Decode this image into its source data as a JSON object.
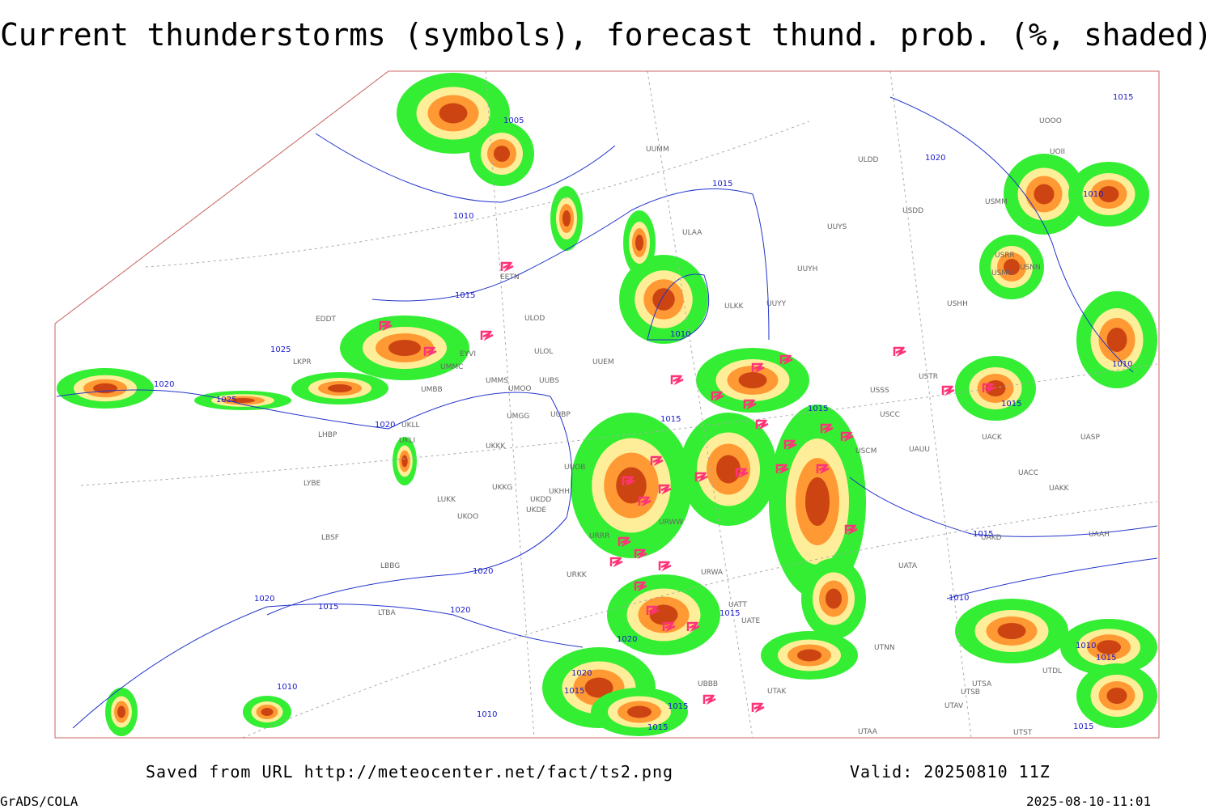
{
  "title": "Current thunderstorms (symbols), forecast thund. prob. (%, shaded)",
  "stations": [
    "ULDD",
    "UUYS",
    "UUYH",
    "UUYY",
    "ULKK",
    "ULAA",
    "UUMM",
    "ULOD",
    "ULOL",
    "UUEM",
    "UMMS",
    "UMOO",
    "UUBS",
    "UMBB",
    "UMGG",
    "UUBP",
    "UKKK",
    "UUOB",
    "UKHH",
    "UKDD",
    "UKDE",
    "UKKG",
    "LUKK",
    "UKOO",
    "URRR",
    "URWW",
    "URWA",
    "URKK",
    "LBBG",
    "LBSF",
    "LYBE",
    "LHBP",
    "LKPR",
    "EDDT",
    "EYVI",
    "UMMC",
    "UKLL",
    "UKLI",
    "EETN",
    "LTBA",
    "USSS",
    "USTR",
    "USCC",
    "USCM",
    "UAUU",
    "UACK",
    "UASP",
    "UACC",
    "UAKK",
    "UAKD",
    "UAAH",
    "UATA",
    "UATE",
    "UATT",
    "UTAK",
    "UBBB",
    "UTNN",
    "UTDL",
    "UTSB",
    "UTSA",
    "UTAV",
    "UTST",
    "UTAA",
    "USHH",
    "USMM",
    "USDD",
    "UOOO",
    "UOII",
    "USRR",
    "USNN",
    "USMU"
  ],
  "isobars": [
    "1005",
    "1010",
    "1015",
    "1015",
    "1025",
    "1020",
    "1025",
    "1020",
    "1010",
    "1015",
    "1015",
    "1020",
    "1015",
    "1010",
    "1010",
    "1015",
    "1015",
    "1010",
    "1020",
    "1020",
    "1015",
    "1020",
    "1015",
    "1020",
    "1020",
    "1015",
    "1010",
    "1010",
    "1015",
    "1015",
    "1010",
    "1015",
    "1015"
  ],
  "footer": {
    "source": "Saved from URL http://meteocenter.net/fact/ts2.png",
    "valid": "Valid: 20250810 11Z",
    "software": "GrADS/COLA",
    "timestamp": "2025-08-10-11:01"
  }
}
